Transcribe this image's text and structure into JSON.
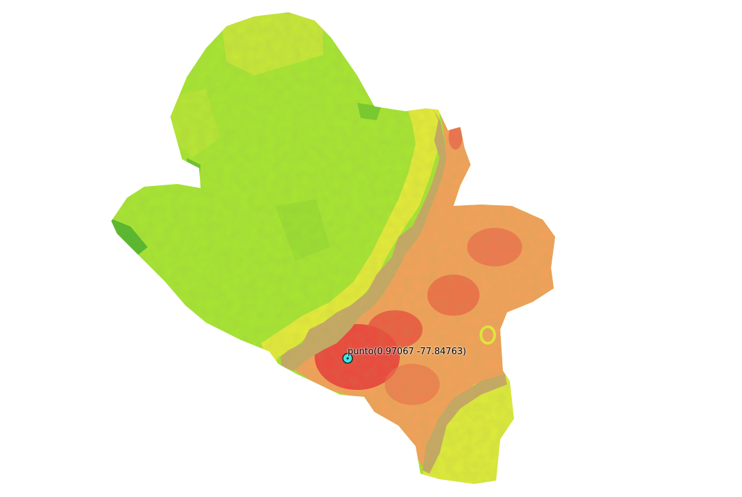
{
  "map": {
    "background": "#ffffff",
    "legend_colors": {
      "high_green": "#7ccf2a",
      "mid_green": "#a8e632",
      "yellow": "#e9ee3a",
      "tan": "#c9a865",
      "orange": "#f7a35a",
      "red": "#ee3a3a"
    }
  },
  "point": {
    "label": "punto(0.97067 -77.84763)",
    "marker_color": "#3fe6e6",
    "marker_icon": "circle-marker-icon"
  }
}
